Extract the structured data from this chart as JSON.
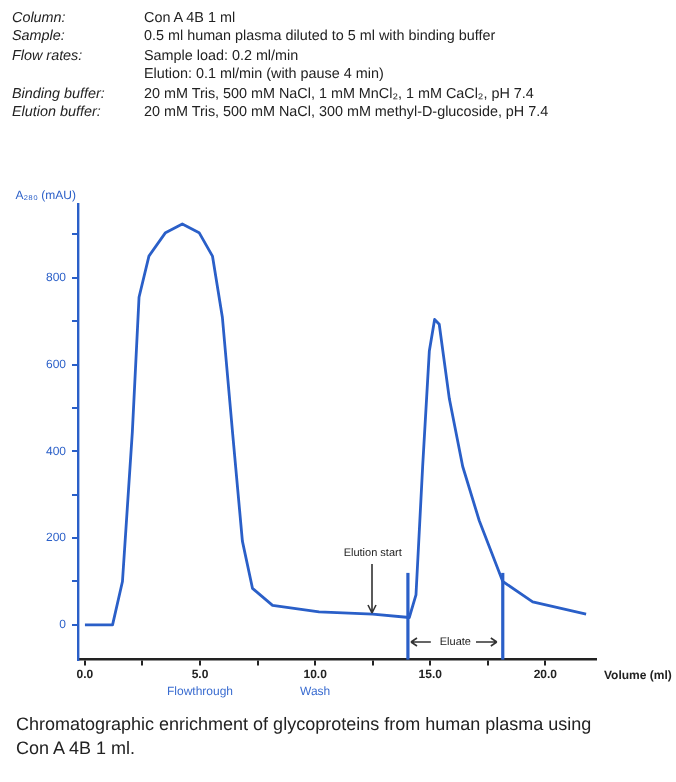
{
  "chart_data": {
    "type": "line",
    "xlabel": "Volume (ml)",
    "ylabel": "A₂₈₀ (mAU)",
    "annotations": [
      "Column: Con A 4B 1 ml",
      "Sample: 0.5 ml human plasma diluted to 5 ml with binding buffer",
      "Flow rates: Sample load: 0.2 ml/min\nElution: 0.1 ml/min (with pause 4 min)",
      "Binding buffer: 20 mM Tris, 500 mM NaCl, 1 mM MnCl₂, 1 mM CaCl₂, pH 7.4",
      "Elution buffer: 20 mM Tris, 500 mM NaCl, 300 mM methyl-D-glucoside, pH 7.4",
      {
        "text": "Elution start",
        "x": 12.5,
        "y": 25
      },
      "Flowthrough",
      "Wash",
      "Eluate",
      "Chromatographic enrichment of glycoproteins from human plasma using Con A 4B 1 ml."
    ],
    "series": [
      {
        "color": "#2a5fc8",
        "x": [
          0,
          1.2,
          1.63,
          2.06,
          2.35,
          2.78,
          3.5,
          4.23,
          4.96,
          5.54,
          5.97,
          6.41,
          6.84,
          7.28,
          8.15,
          10.17,
          12.5,
          14.09,
          14.38,
          14.67,
          14.96,
          15.19,
          15.39,
          15.83,
          16.41,
          17.13,
          18.15,
          19.45,
          21.77
        ],
        "values": [
          0,
          0,
          100,
          445,
          755,
          850,
          904,
          924,
          904,
          850,
          709,
          445,
          193,
          84,
          45,
          30,
          25,
          17,
          69,
          365,
          631,
          704,
          693,
          521,
          365,
          240,
          100,
          53,
          25
        ]
      }
    ],
    "ref_lines": [
      {
        "axis": "x",
        "value": 14.03,
        "color": "#2a5fc8"
      },
      {
        "axis": "x",
        "value": 18.15,
        "color": "#2a5fc8"
      }
    ],
    "xlim": [
      -0.3,
      22.2
    ],
    "ylim": [
      -80,
      970
    ],
    "xticks": [
      {
        "value": 0,
        "label": "0.0"
      },
      {
        "value": 2.5,
        "label": null
      },
      {
        "value": 5,
        "label": "5.0"
      },
      {
        "value": 7.5,
        "label": null
      },
      {
        "value": 10,
        "label": "10.0"
      },
      {
        "value": 12.5,
        "label": null
      },
      {
        "value": 15,
        "label": "15.0"
      },
      {
        "value": 17.5,
        "label": null
      },
      {
        "value": 20,
        "label": "20.0"
      }
    ],
    "yticks": [
      0,
      {
        "value": 100,
        "label": null
      },
      200,
      {
        "value": 300,
        "label": null
      },
      400,
      {
        "value": 500,
        "label": null
      },
      600,
      {
        "value": 700,
        "label": null
      },
      800,
      {
        "value": 900,
        "label": null
      }
    ],
    "grid": false,
    "legend": false,
    "marker": "none",
    "line_style": "solid"
  }
}
